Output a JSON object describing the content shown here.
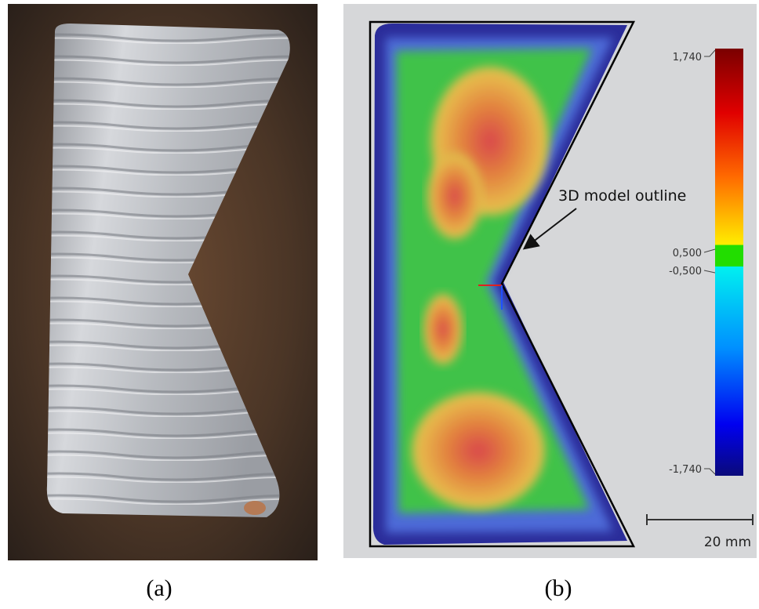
{
  "panels": [
    {
      "label": "(a)"
    },
    {
      "label": "(b)",
      "annotation": "3D model outline",
      "colorbar": {
        "labels": [
          "1,740",
          "0,500",
          "-0,500",
          "-1,740"
        ]
      },
      "scale_bar": "20 mm"
    }
  ]
}
